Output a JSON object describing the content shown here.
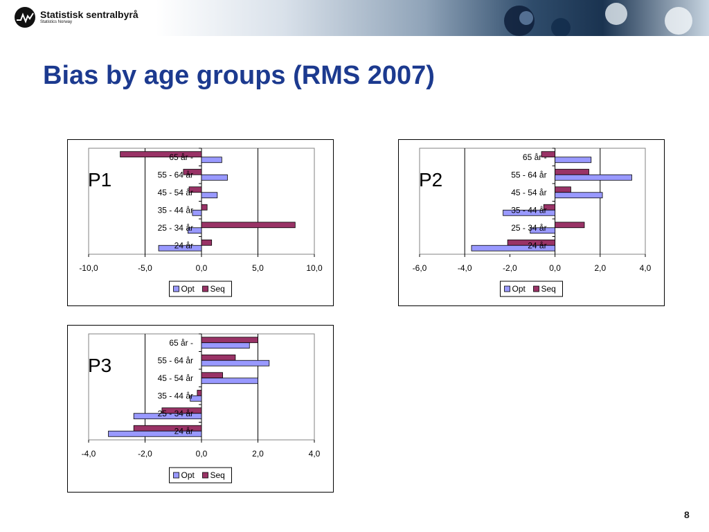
{
  "slide": {
    "org_name": "Statistisk sentralbyrå",
    "org_sub": "Statistics Norway",
    "title": "Bias by age groups (RMS 2007)",
    "page_number": "8"
  },
  "colors": {
    "opt": "#9999ff",
    "seq": "#993366",
    "title": "#1c3a8f"
  },
  "chart_data": [
    {
      "type": "bar",
      "orientation": "horizontal",
      "panel_label": "P1",
      "categories": [
        "24 år",
        "25 - 34 år",
        "35 - 44 år",
        "45 - 54 år",
        "55 - 64 år",
        "65 år -"
      ],
      "series": [
        {
          "name": "Opt",
          "values": [
            -3.8,
            -1.2,
            -0.8,
            1.4,
            2.3,
            1.8
          ]
        },
        {
          "name": "Seq",
          "values": [
            0.9,
            8.3,
            0.5,
            -1.1,
            -1.6,
            -7.2
          ]
        }
      ],
      "xlim": [
        -10,
        10
      ],
      "ticks": [
        "-10,0",
        "-5,0",
        "0,0",
        "5,0",
        "10,0"
      ],
      "gridlines": [
        -5,
        5
      ],
      "legend": "bottom"
    },
    {
      "type": "bar",
      "orientation": "horizontal",
      "panel_label": "P2",
      "categories": [
        "24 år",
        "25 - 34 år",
        "35 - 44 år",
        "45 - 54 år",
        "55 - 64 år",
        "65 år -"
      ],
      "series": [
        {
          "name": "Opt",
          "values": [
            -3.7,
            -1.1,
            -2.3,
            2.1,
            3.4,
            1.6
          ]
        },
        {
          "name": "Seq",
          "values": [
            -2.1,
            1.3,
            -0.5,
            0.7,
            1.5,
            -0.6
          ]
        }
      ],
      "xlim": [
        -6,
        4
      ],
      "ticks": [
        "-6,0",
        "-4,0",
        "-2,0",
        "0,0",
        "2,0",
        "4,0"
      ],
      "gridlines": [
        -4,
        2
      ],
      "legend": "bottom"
    },
    {
      "type": "bar",
      "orientation": "horizontal",
      "panel_label": "P3",
      "categories": [
        "24 år",
        "25 - 34 år",
        "35 - 44 år",
        "45 - 54 år",
        "55 - 64 år",
        "65 år -"
      ],
      "series": [
        {
          "name": "Opt",
          "values": [
            -3.3,
            -2.4,
            -0.4,
            2.0,
            2.4,
            1.7
          ]
        },
        {
          "name": "Seq",
          "values": [
            -2.4,
            -1.4,
            -0.15,
            0.75,
            1.2,
            2.0
          ]
        }
      ],
      "xlim": [
        -4,
        4
      ],
      "ticks": [
        "-4,0",
        "-2,0",
        "0,0",
        "2,0",
        "4,0"
      ],
      "gridlines": [
        -2,
        2
      ],
      "legend": "bottom"
    }
  ]
}
